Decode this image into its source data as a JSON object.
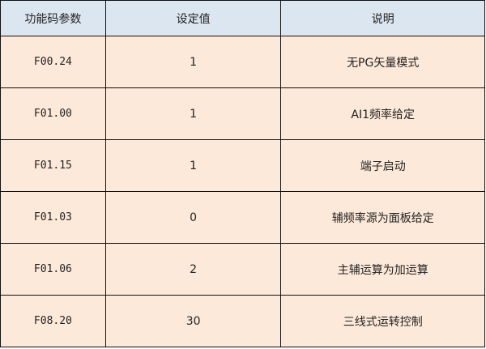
{
  "headers": [
    "功能码参数",
    "设定值",
    "说明"
  ],
  "rows": [
    {
      "code": "F00.24",
      "value": "1",
      "desc": "无PG矢量模式"
    },
    {
      "code": "F01.00",
      "value": "1",
      "desc": "AI1频率给定"
    },
    {
      "code": "F01.15",
      "value": "1",
      "desc": "端子启动"
    },
    {
      "code": "F01.03",
      "value": "0",
      "desc": "辅频率源为面板给定"
    },
    {
      "code": "F01.06",
      "value": "2",
      "desc": "主辅运算为加运算"
    },
    {
      "code": "F08.20",
      "value": "30",
      "desc": "三线式运转控制"
    }
  ],
  "colors": {
    "header_bg": "#dce6f1",
    "row_bg": "#fde9d9",
    "border": "#111111"
  }
}
